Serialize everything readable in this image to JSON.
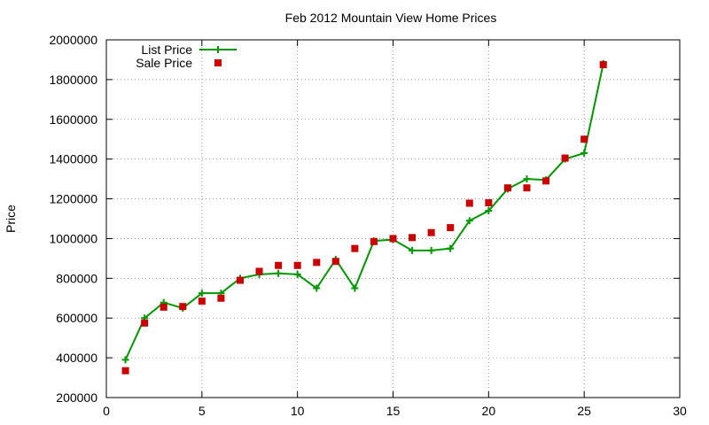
{
  "chart_data": {
    "type": "line",
    "title": "Feb 2012 Mountain View Home Prices",
    "xlabel": "",
    "ylabel": "Price",
    "xlim": [
      0,
      30
    ],
    "ylim": [
      200000,
      2000000
    ],
    "xticks": [
      0,
      5,
      10,
      15,
      20,
      25,
      30
    ],
    "yticks": [
      200000,
      400000,
      600000,
      800000,
      1000000,
      1200000,
      1400000,
      1600000,
      1800000,
      2000000
    ],
    "grid": true,
    "legend_position": "top-left",
    "series": [
      {
        "name": "List Price",
        "style": "line-with-plus-markers",
        "color": "#009900",
        "x": [
          1,
          2,
          3,
          4,
          5,
          6,
          7,
          8,
          9,
          10,
          11,
          12,
          13,
          14,
          15,
          16,
          17,
          18,
          19,
          20,
          21,
          22,
          23,
          24,
          25,
          26
        ],
        "values": [
          390000,
          600000,
          678000,
          650000,
          725000,
          725000,
          800000,
          820000,
          825000,
          820000,
          750000,
          895000,
          750000,
          988000,
          995000,
          940000,
          940000,
          950000,
          1090000,
          1140000,
          1250000,
          1300000,
          1295000,
          1400000,
          1430000,
          1880000
        ]
      },
      {
        "name": "Sale Price",
        "style": "square-markers",
        "color": "#cc0000",
        "x": [
          1,
          2,
          3,
          4,
          5,
          6,
          7,
          8,
          9,
          10,
          11,
          12,
          13,
          14,
          15,
          16,
          17,
          18,
          19,
          20,
          21,
          22,
          23,
          24,
          25,
          26
        ],
        "values": [
          335000,
          575000,
          655000,
          658000,
          685000,
          700000,
          790000,
          835000,
          865000,
          865000,
          880000,
          885000,
          950000,
          985000,
          1000000,
          1005000,
          1030000,
          1055000,
          1178000,
          1180000,
          1255000,
          1255000,
          1290000,
          1405000,
          1500000,
          1875000
        ]
      }
    ]
  }
}
